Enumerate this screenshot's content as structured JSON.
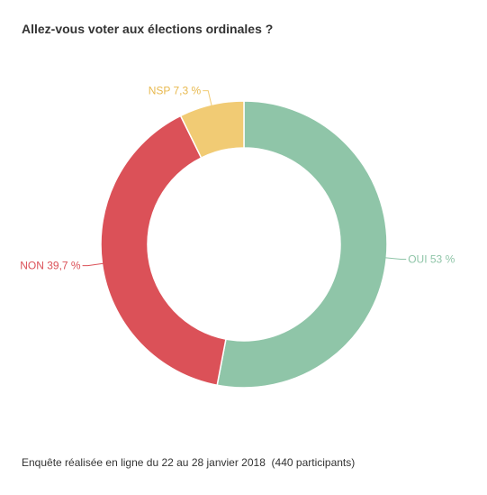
{
  "chart_data": {
    "type": "pie",
    "title": "Allez-vous voter aux élections ordinales ?",
    "categories": [
      "OUI",
      "NON",
      "NSP"
    ],
    "values": [
      53,
      39.7,
      7.3
    ],
    "data_labels": [
      "OUI 53 %",
      "NON 39,7 %",
      "NSP 7,3 %"
    ],
    "colors": [
      "#8fc5a8",
      "#db5158",
      "#f1cb74"
    ],
    "label_colors": [
      "#8fc5a8",
      "#db5158",
      "#e8b94f"
    ],
    "style": "donut",
    "start_angle": "top",
    "direction": "clockwise"
  },
  "footnote": "Enquête réalisée en ligne du 22 au 28 janvier 2018  (440 participants)"
}
